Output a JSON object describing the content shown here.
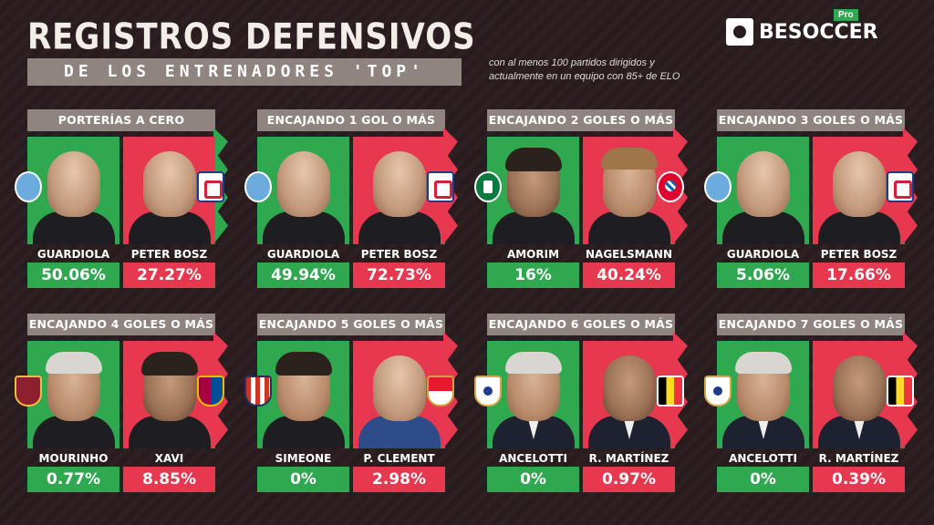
{
  "header": {
    "title": "REGISTROS DEFENSIVOS",
    "subtitle": "DE LOS ENTRENADORES 'TOP'",
    "note": "con al menos 100 partidos dirigidos y actualmente en un equipo con 85+ de ELO",
    "brand": "BESOCCER",
    "brand_tag": "Pro"
  },
  "colors": {
    "green": "#2fa84f",
    "red": "#e63950",
    "panel_title_bg": "#8f8480",
    "background": "#2a1c1e"
  },
  "panels": [
    {
      "title": "PORTERÍAS A CERO",
      "left": {
        "name": "GUARDIOLA",
        "value": "50.06%",
        "badge": "manchester-city-badge"
      },
      "right": {
        "name": "PETER BOSZ",
        "value": "27.27%",
        "badge": "olympique-lyonnais-badge"
      }
    },
    {
      "title": "ENCAJANDO 1 GOL O MÁS",
      "left": {
        "name": "GUARDIOLA",
        "value": "49.94%",
        "badge": "manchester-city-badge"
      },
      "right": {
        "name": "PETER BOSZ",
        "value": "72.73%",
        "badge": "olympique-lyonnais-badge"
      }
    },
    {
      "title": "ENCAJANDO 2 GOLES O MÁS",
      "left": {
        "name": "AMORIM",
        "value": "16%",
        "badge": "sporting-cp-badge"
      },
      "right": {
        "name": "NAGELSMANN",
        "value": "40.24%",
        "badge": "bayern-munich-badge"
      }
    },
    {
      "title": "ENCAJANDO 3 GOLES O MÁS",
      "left": {
        "name": "GUARDIOLA",
        "value": "5.06%",
        "badge": "manchester-city-badge"
      },
      "right": {
        "name": "PETER BOSZ",
        "value": "17.66%",
        "badge": "olympique-lyonnais-badge"
      }
    },
    {
      "title": "ENCAJANDO 4 GOLES O MÁS",
      "left": {
        "name": "MOURINHO",
        "value": "0.77%",
        "badge": "as-roma-badge"
      },
      "right": {
        "name": "XAVI",
        "value": "8.85%",
        "badge": "fc-barcelona-badge"
      }
    },
    {
      "title": "ENCAJANDO 5 GOLES O MÁS",
      "left": {
        "name": "SIMEONE",
        "value": "0%",
        "badge": "atletico-madrid-badge"
      },
      "right": {
        "name": "P. CLEMENT",
        "value": "2.98%",
        "badge": "as-monaco-badge"
      }
    },
    {
      "title": "ENCAJANDO 6 GOLES O MÁS",
      "left": {
        "name": "ANCELOTTI",
        "value": "0%",
        "badge": "real-madrid-badge"
      },
      "right": {
        "name": "R. MARTÍNEZ",
        "value": "0.97%",
        "badge": "belgium-badge"
      }
    },
    {
      "title": "ENCAJANDO 7 GOLES O MÁS",
      "left": {
        "name": "ANCELOTTI",
        "value": "0%",
        "badge": "real-madrid-badge"
      },
      "right": {
        "name": "R. MARTÍNEZ",
        "value": "0.39%",
        "badge": "belgium-badge"
      }
    }
  ]
}
